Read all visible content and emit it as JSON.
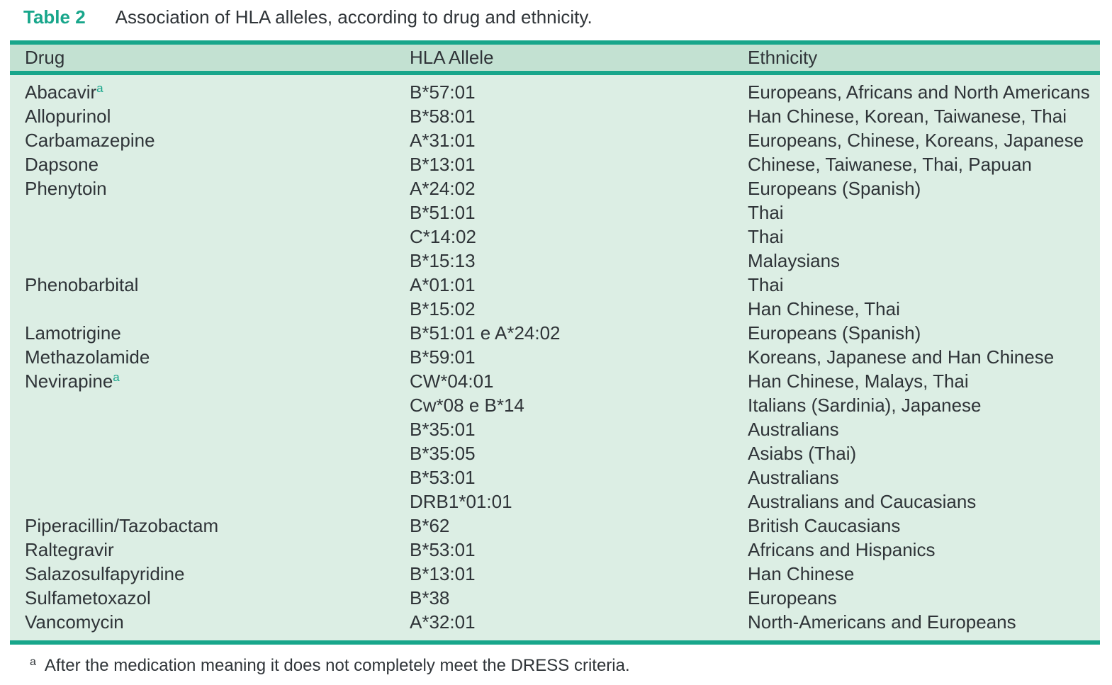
{
  "colors": {
    "accent": "#18a68b",
    "header_bg": "#c3e1d2",
    "body_bg": "#dceee4",
    "text": "#2f3438"
  },
  "title": {
    "label": "Table 2",
    "caption": "Association of HLA alleles, according to drug and ethnicity."
  },
  "table": {
    "headers": [
      "Drug",
      "HLA Allele",
      "Ethnicity"
    ],
    "rows": [
      {
        "drug": "Abacavir",
        "sup": "a",
        "allele": "B*57:01",
        "ethnicity": "Europeans, Africans and North Americans"
      },
      {
        "drug": "Allopurinol",
        "sup": "",
        "allele": "B*58:01",
        "ethnicity": "Han Chinese, Korean, Taiwanese, Thai"
      },
      {
        "drug": "Carbamazepine",
        "sup": "",
        "allele": "A*31:01",
        "ethnicity": "Europeans, Chinese, Koreans, Japanese"
      },
      {
        "drug": "Dapsone",
        "sup": "",
        "allele": "B*13:01",
        "ethnicity": "Chinese, Taiwanese, Thai, Papuan"
      },
      {
        "drug": "Phenytoin",
        "sup": "",
        "allele": "A*24:02",
        "ethnicity": "Europeans (Spanish)"
      },
      {
        "drug": "",
        "sup": "",
        "allele": "B*51:01",
        "ethnicity": "Thai"
      },
      {
        "drug": "",
        "sup": "",
        "allele": "C*14:02",
        "ethnicity": "Thai"
      },
      {
        "drug": "",
        "sup": "",
        "allele": "B*15:13",
        "ethnicity": "Malaysians"
      },
      {
        "drug": "Phenobarbital",
        "sup": "",
        "allele": "A*01:01",
        "ethnicity": "Thai"
      },
      {
        "drug": "",
        "sup": "",
        "allele": "B*15:02",
        "ethnicity": "Han Chinese, Thai"
      },
      {
        "drug": "Lamotrigine",
        "sup": "",
        "allele": "B*51:01 e A*24:02",
        "ethnicity": "Europeans (Spanish)"
      },
      {
        "drug": "Methazolamide",
        "sup": "",
        "allele": "B*59:01",
        "ethnicity": "Koreans, Japanese and Han Chinese"
      },
      {
        "drug": "Nevirapine",
        "sup": "a",
        "allele": "CW*04:01",
        "ethnicity": "Han Chinese, Malays, Thai"
      },
      {
        "drug": "",
        "sup": "",
        "allele": "Cw*08 e B*14",
        "ethnicity": "Italians (Sardinia), Japanese"
      },
      {
        "drug": "",
        "sup": "",
        "allele": "B*35:01",
        "ethnicity": "Australians"
      },
      {
        "drug": "",
        "sup": "",
        "allele": "B*35:05",
        "ethnicity": "Asiabs (Thai)"
      },
      {
        "drug": "",
        "sup": "",
        "allele": "B*53:01",
        "ethnicity": "Australians"
      },
      {
        "drug": "",
        "sup": "",
        "allele": "DRB1*01:01",
        "ethnicity": "Australians and Caucasians"
      },
      {
        "drug": "Piperacillin/Tazobactam",
        "sup": "",
        "allele": "B*62",
        "ethnicity": "British Caucasians"
      },
      {
        "drug": "Raltegravir",
        "sup": "",
        "allele": "B*53:01",
        "ethnicity": "Africans and Hispanics"
      },
      {
        "drug": "Salazosulfapyridine",
        "sup": "",
        "allele": "B*13:01",
        "ethnicity": "Han Chinese"
      },
      {
        "drug": "Sulfametoxazol",
        "sup": "",
        "allele": "B*38",
        "ethnicity": "Europeans"
      },
      {
        "drug": "Vancomycin",
        "sup": "",
        "allele": "A*32:01",
        "ethnicity": "North-Americans and Europeans"
      }
    ]
  },
  "footnote": {
    "marker": "a",
    "text": "After the medication meaning it does not completely meet the DRESS criteria."
  }
}
